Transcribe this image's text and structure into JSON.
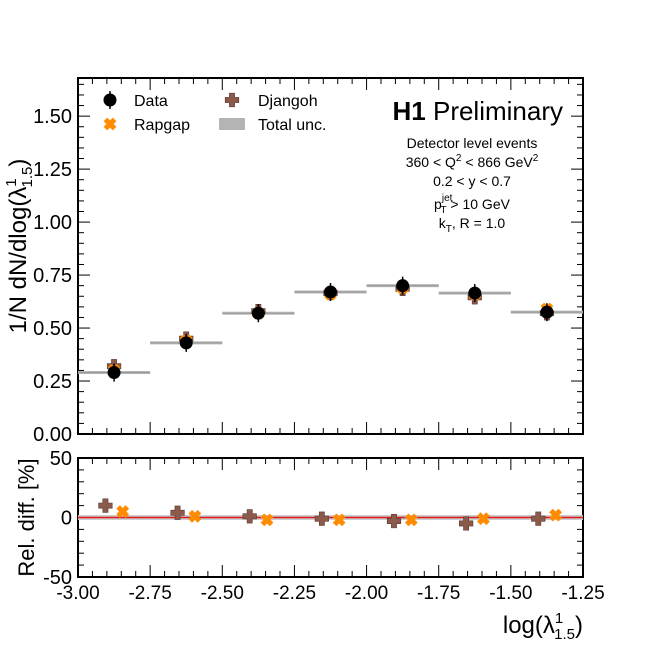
{
  "chart_data": [
    {
      "type": "scatter",
      "panel": "main",
      "ylabel": "1/N dN/dlog(λ¹₁.₅)",
      "ylabel_parts": {
        "base": "1/N dN/dlog(λ",
        "sup": "1",
        "sub": "1.5",
        "close": ")"
      },
      "xlim": [
        -3.0,
        -1.25
      ],
      "ylim": [
        0.0,
        1.68
      ],
      "yticks": [
        "0.00",
        "0.25",
        "0.50",
        "0.75",
        "1.00",
        "1.25",
        "1.50"
      ],
      "ytick_values": [
        0.0,
        0.25,
        0.5,
        0.75,
        1.0,
        1.25,
        1.5
      ],
      "bin_edges": [
        -3.0,
        -2.75,
        -2.5,
        -2.25,
        -2.0,
        -1.75,
        -1.5,
        -1.25
      ],
      "bin_centers": [
        -2.875,
        -2.625,
        -2.375,
        -2.125,
        -1.875,
        -1.625,
        -1.375
      ],
      "series": [
        {
          "name": "Data",
          "marker": "circle",
          "color": "#000000",
          "values": [
            0.29,
            0.43,
            0.57,
            0.67,
            0.7,
            0.665,
            0.575
          ]
        },
        {
          "name": "Rapgap",
          "marker": "x-cross",
          "color": "#ff8c00",
          "values": [
            0.3,
            0.44,
            0.57,
            0.66,
            0.69,
            0.66,
            0.59
          ]
        },
        {
          "name": "Djangoh",
          "marker": "plus-cross",
          "color": "#8b5a4a",
          "values": [
            0.32,
            0.45,
            0.58,
            0.665,
            0.685,
            0.645,
            0.57
          ]
        },
        {
          "name": "Total unc.",
          "marker": "band",
          "color": "#b4b4b4",
          "values": [
            0.29,
            0.43,
            0.57,
            0.67,
            0.7,
            0.665,
            0.575
          ]
        }
      ],
      "legend_placement": "top-left",
      "title": {
        "bold": "H1",
        "normal": "Preliminary"
      },
      "annotations": [
        {
          "text": "Detector level events"
        },
        {
          "parts": [
            "360 < Q",
            "2",
            " < 866 GeV",
            "2"
          ]
        },
        {
          "text": "0.2 < y < 0.7"
        },
        {
          "parts": [
            "p",
            "jet",
            "T",
            " > 10 GeV"
          ]
        },
        {
          "parts": [
            "k",
            "T",
            ", R = 1.0"
          ]
        }
      ]
    },
    {
      "type": "scatter",
      "panel": "ratio",
      "ylabel": "Rel. diff. [%]",
      "xlabel": "log(λ¹₁.₅)",
      "xlabel_parts": {
        "base": "log(λ",
        "sup": "1",
        "sub": "1.5",
        "close": ")"
      },
      "xlim": [
        -3.0,
        -1.25
      ],
      "ylim": [
        -50,
        50
      ],
      "yticks": [
        "-50",
        "0",
        "50"
      ],
      "ytick_values": [
        -50,
        0,
        50
      ],
      "xticks": [
        "-3.00",
        "-2.75",
        "-2.50",
        "-2.25",
        "-2.00",
        "-1.75",
        "-1.50",
        "-1.25"
      ],
      "xtick_values": [
        -3.0,
        -2.75,
        -2.5,
        -2.25,
        -2.0,
        -1.75,
        -1.5,
        -1.25
      ],
      "reference_line": 0,
      "reference_color": "#e31a1c",
      "series": [
        {
          "name": "Djangoh",
          "x": [
            -2.905,
            -2.655,
            -2.405,
            -2.155,
            -1.905,
            -1.655,
            -1.405
          ],
          "values": [
            10,
            4,
            1,
            -1,
            -3,
            -5,
            -1
          ]
        },
        {
          "name": "Rapgap",
          "x": [
            -2.845,
            -2.595,
            -2.345,
            -2.095,
            -1.845,
            -1.595,
            -1.345
          ],
          "values": [
            5,
            1,
            -2,
            -2,
            -2,
            -1,
            2
          ]
        }
      ]
    }
  ]
}
